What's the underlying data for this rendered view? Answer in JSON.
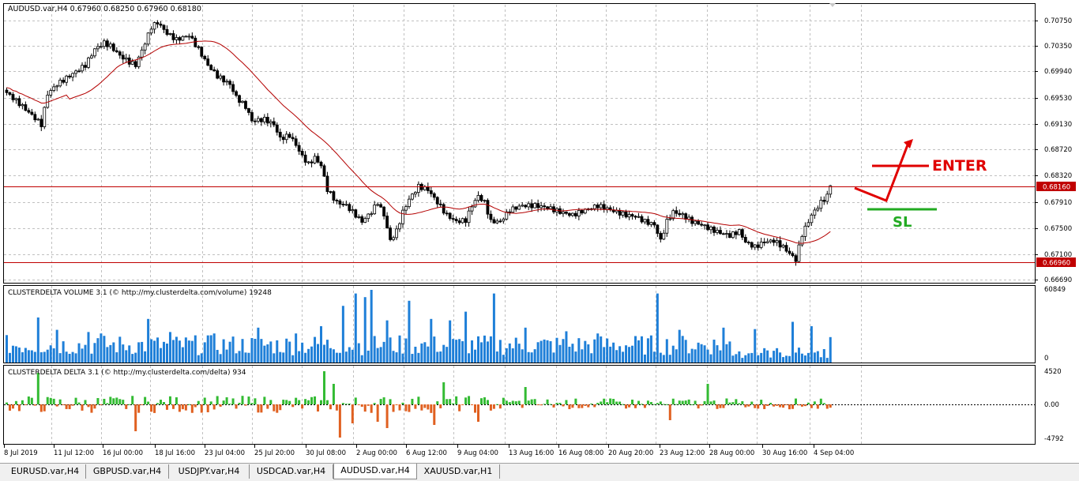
{
  "main_chart": {
    "title": "AUDUSD.var,H4  0.67960 0.68250 0.67960 0.68180",
    "price_labels": [
      "0.70750",
      "0.70350",
      "0.69940",
      "0.69530",
      "0.69130",
      "0.68720",
      "0.68320",
      "0.67910",
      "0.67500",
      "0.67100",
      "0.66690"
    ],
    "hline_upper": "0.68160",
    "hline_lower": "0.66960",
    "annotation_enter": "ENTER",
    "annotation_sl": "SL",
    "colors": {
      "ma": "#b40000",
      "hline": "#c00000",
      "enter": "#e00000",
      "sl": "#22aa22"
    }
  },
  "volume_panel": {
    "title": "CLUSTERDELTA VOLUME 3.1 (© http://my.clusterdelta.com/volume) 19248",
    "scale_max": "60849",
    "scale_min": "0",
    "bar_color": "#1e7fd8"
  },
  "delta_panel": {
    "title": "CLUSTERDELTA DELTA 3.1 (© http://my.clusterdelta.com/delta) 934",
    "scale_max": "4520",
    "scale_mid": "0.00",
    "scale_min": "-4792",
    "pos_color": "#33bb33",
    "neg_color": "#e06020"
  },
  "time_axis": [
    "8 Jul 2019",
    "11 Jul 12:00",
    "16 Jul 00:00",
    "18 Jul 16:00",
    "23 Jul 04:00",
    "25 Jul 20:00",
    "30 Jul 08:00",
    "2 Aug 00:00",
    "6 Aug 12:00",
    "9 Aug 04:00",
    "13 Aug 16:00",
    "16 Aug 08:00",
    "20 Aug 20:00",
    "23 Aug 12:00",
    "28 Aug 00:00",
    "30 Aug 16:00",
    "4 Sep 04:00"
  ],
  "tabs": [
    {
      "label": "EURUSD.var,H4",
      "active": false
    },
    {
      "label": "GBPUSD.var,H4",
      "active": false
    },
    {
      "label": "USDJPY.var,H4",
      "active": false
    },
    {
      "label": "USDCAD.var,H4",
      "active": false
    },
    {
      "label": "AUDUSD.var,H4",
      "active": true
    },
    {
      "label": "XAUUSD.var,H1",
      "active": false
    }
  ]
}
